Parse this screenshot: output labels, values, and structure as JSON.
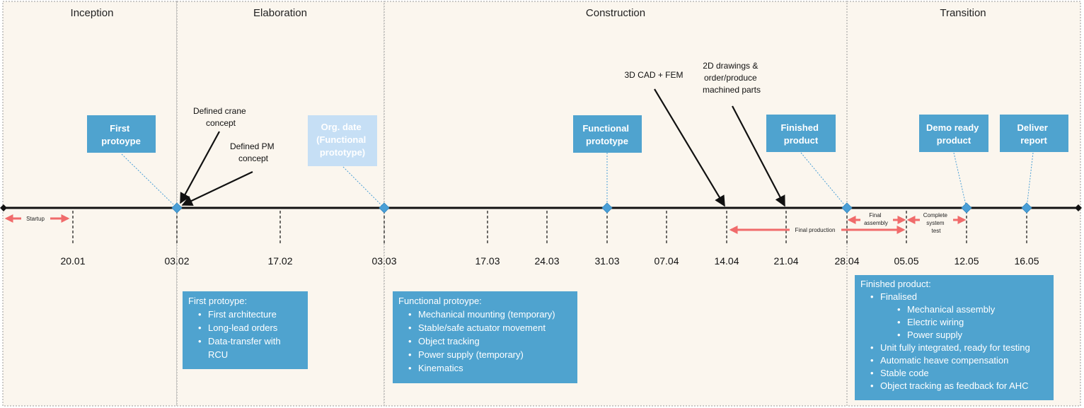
{
  "phases": [
    {
      "label": "Inception"
    },
    {
      "label": "Elaboration"
    },
    {
      "label": "Construction"
    },
    {
      "label": "Transition"
    }
  ],
  "dates": [
    "20.01",
    "03.02",
    "17.02",
    "03.03",
    "17.03",
    "24.03",
    "31.03",
    "07.04",
    "14.04",
    "21.04",
    "28.04",
    "05.05",
    "12.05",
    "16.05"
  ],
  "milestones": [
    {
      "lines": [
        "First",
        "protoype"
      ],
      "faded": false
    },
    {
      "lines": [
        "Org. date",
        "(Functional",
        "prototype)"
      ],
      "faded": true
    },
    {
      "lines": [
        "Functional",
        "prototype"
      ],
      "faded": false
    },
    {
      "lines": [
        "Finished",
        "product"
      ],
      "faded": false
    },
    {
      "lines": [
        "Demo ready",
        "product"
      ],
      "faded": false
    },
    {
      "lines": [
        "Deliver",
        "report"
      ],
      "faded": false
    }
  ],
  "notes": [
    {
      "lines": [
        "Defined crane",
        "concept"
      ]
    },
    {
      "lines": [
        "Defined PM",
        "concept"
      ]
    },
    {
      "lines": [
        "3D CAD + FEM"
      ]
    },
    {
      "lines": [
        "2D drawings &",
        "order/produce",
        "machined parts"
      ]
    }
  ],
  "ranges": [
    {
      "lines": [
        "Startup"
      ]
    },
    {
      "lines": [
        "Final production"
      ]
    },
    {
      "lines": [
        "Final",
        "assembly"
      ]
    },
    {
      "lines": [
        "Complete",
        "system",
        "test"
      ]
    }
  ],
  "panels": {
    "first": {
      "title": "First protoype:",
      "items": [
        "First architecture",
        "Long-lead orders",
        "Data-transfer with RCU"
      ]
    },
    "functional": {
      "title": "Functional protoype:",
      "items": [
        "Mechanical mounting (temporary)",
        "Stable/safe actuator movement",
        "Object tracking",
        "Power supply (temporary)",
        "Kinematics"
      ]
    },
    "finished": {
      "title": "Finished product:",
      "finalised": "Finalised",
      "sub_items": [
        "Mechanical assembly",
        "Electric wiring",
        "Power supply"
      ],
      "items": [
        "Unit fully integrated, ready for testing",
        "Automatic heave compensation",
        "Stable code",
        "Object tracking as feedback for AHC"
      ]
    }
  },
  "colors": {
    "phase_bg": "#fbf6ee",
    "box_blue": "#4fa3cf",
    "box_faded": "#c6dff5",
    "diamond": "#4a9fd6",
    "range_arrow": "#f06b6b",
    "timeline": "#111111"
  }
}
